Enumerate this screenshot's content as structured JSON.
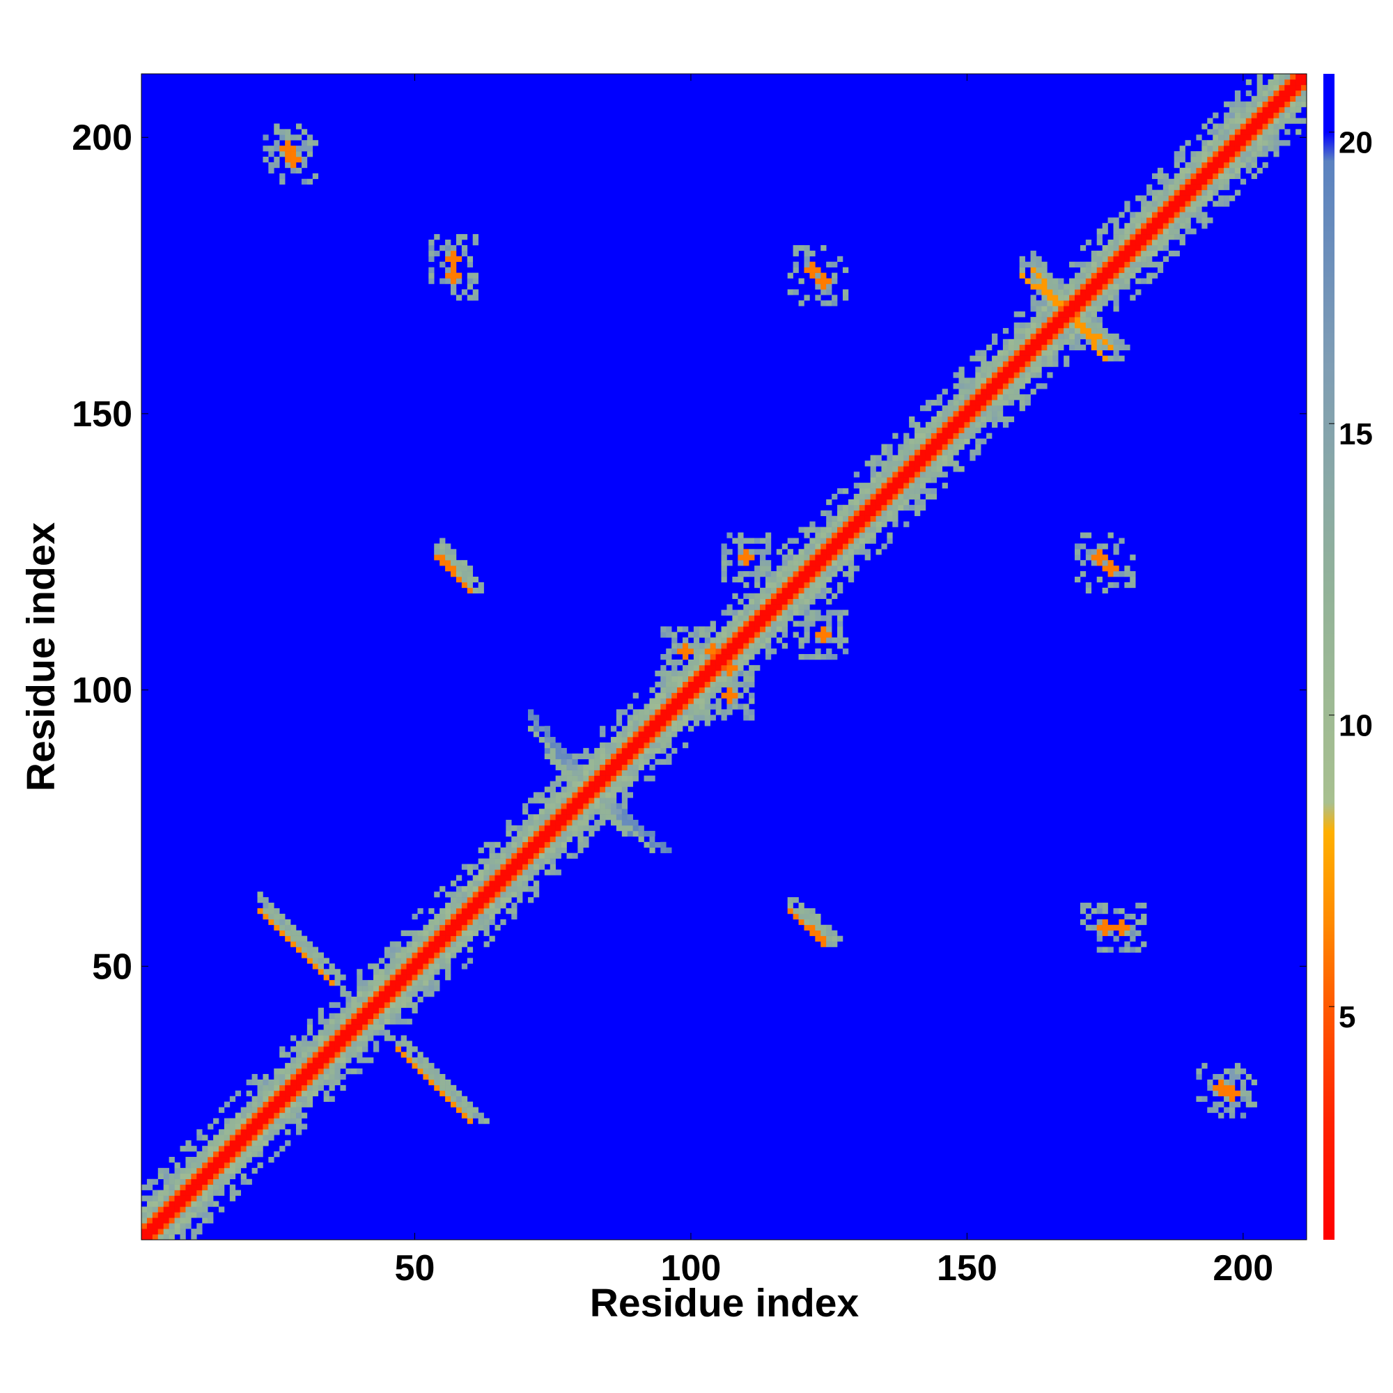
{
  "chart_data": {
    "type": "heatmap",
    "title": "",
    "xlabel": "Residue index",
    "ylabel": "Residue index",
    "n_residues": 211,
    "xlim": [
      1,
      211
    ],
    "ylim": [
      1,
      211
    ],
    "x_ticks": [
      50,
      100,
      150,
      200
    ],
    "y_ticks": [
      50,
      100,
      150,
      200
    ],
    "x_tick_labels": [
      "50",
      "100",
      "150",
      "200"
    ],
    "y_tick_labels": [
      "50",
      "100",
      "150",
      "200"
    ],
    "colorbar": {
      "range": [
        1,
        21
      ],
      "ticks": [
        5,
        10,
        15,
        20
      ],
      "tick_labels": [
        "5",
        "10",
        "15",
        "20"
      ],
      "stops": [
        {
          "value": 1,
          "color": "#ff0000"
        },
        {
          "value": 3,
          "color": "#ff2200"
        },
        {
          "value": 5,
          "color": "#ff5a00"
        },
        {
          "value": 6.5,
          "color": "#ff8c00"
        },
        {
          "value": 8,
          "color": "#ffb000"
        },
        {
          "value": 8.5,
          "color": "#a8c090"
        },
        {
          "value": 12,
          "color": "#93b398"
        },
        {
          "value": 16,
          "color": "#7f9db4"
        },
        {
          "value": 19.5,
          "color": "#5b82c0"
        },
        {
          "value": 20,
          "color": "#0000ff"
        },
        {
          "value": 21,
          "color": "#0000ff"
        }
      ]
    },
    "background_value": 21,
    "features": {
      "diagonal_band": {
        "from": 1,
        "to": 211,
        "core_value": 1.5,
        "near_value": 5,
        "mid_value": 12
      },
      "antiparallel_contacts": [
        {
          "x1": 22,
          "y1": 60,
          "x2": 34,
          "y2": 48,
          "value": 6.5
        },
        {
          "x1": 47,
          "y1": 35,
          "x2": 59,
          "y2": 23,
          "value": 6.5
        },
        {
          "x1": 55,
          "y1": 124,
          "x2": 59,
          "y2": 119,
          "value": 6
        },
        {
          "x1": 162,
          "y1": 176,
          "x2": 175,
          "y2": 160,
          "value": 7
        },
        {
          "x1": 71,
          "y1": 93,
          "x2": 88,
          "y2": 74,
          "value": 12
        },
        {
          "x1": 118,
          "y1": 60,
          "x2": 124,
          "y2": 54,
          "value": 6
        }
      ],
      "contact_clusters": [
        {
          "x": 57,
          "y": 178,
          "value": 6
        },
        {
          "x": 122,
          "y": 176,
          "value": 6
        },
        {
          "x": 174,
          "y": 124,
          "value": 6
        },
        {
          "x": 175,
          "y": 57,
          "value": 6
        },
        {
          "x": 124,
          "y": 110,
          "value": 6
        },
        {
          "x": 104,
          "y": 107,
          "value": 6
        },
        {
          "x": 107,
          "y": 99,
          "value": 6
        },
        {
          "x": 27,
          "y": 198,
          "value": 6
        },
        {
          "x": 196,
          "y": 28,
          "value": 6
        },
        {
          "x": 110,
          "y": 124,
          "value": 6
        }
      ]
    }
  }
}
